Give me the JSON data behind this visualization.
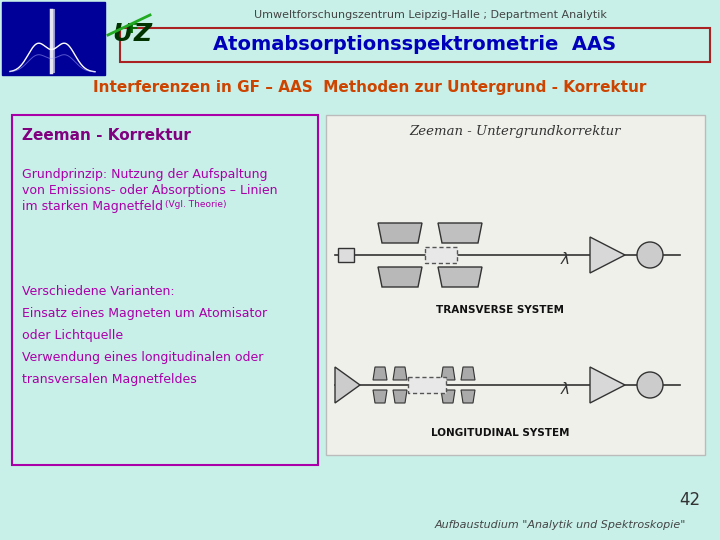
{
  "bg_color": "#c8f0e8",
  "title_box_border": "#aa2222",
  "title_text": "Atomabsorptionsspektrometrie  AAS",
  "title_color": "#0000bb",
  "top_label": "Umweltforschungszentrum Leipzig-Halle ; Department Analytik",
  "top_label_color": "#444444",
  "subtitle": "Interferenzen in GF – AAS  Methoden zur Untergrund - Korrektur",
  "subtitle_color": "#cc4400",
  "left_box_border": "#aa00aa",
  "zeeman_title": "Zeeman - Korrektur",
  "zeeman_title_color": "#800080",
  "body_color": "#aa00aa",
  "body_line1": "Grundprinzip: Nutzung der Aufspaltung",
  "body_line2": "von Emissions- oder Absorptions – Linien",
  "body_line3": "im starken Magnetfeld",
  "vgl_text": "(Vgl. Theorie)",
  "varianten_line1": "Verschiedene Varianten:",
  "varianten_line2": "Einsatz eines Magneten um Atomisator",
  "varianten_line3": "oder Lichtquelle",
  "varianten_line4": "Verwendung eines longitudinalen oder",
  "varianten_line5": "transversalen Magnetfeldes",
  "page_number": "42",
  "footer": "Aufbaustudium \"Analytik und Spektroskopie\"",
  "footer_color": "#444444",
  "image_box_bg": "#f0f0eb",
  "image_title": "Zeeman - Untergrundkorrektur",
  "logo_bg": "#000099",
  "ufz_color_u": "#004400",
  "ufz_color_f": "#888800",
  "trans_label": "TRANSVERSE SYSTEM",
  "long_label": "LONGITUDINAL SYSTEM"
}
